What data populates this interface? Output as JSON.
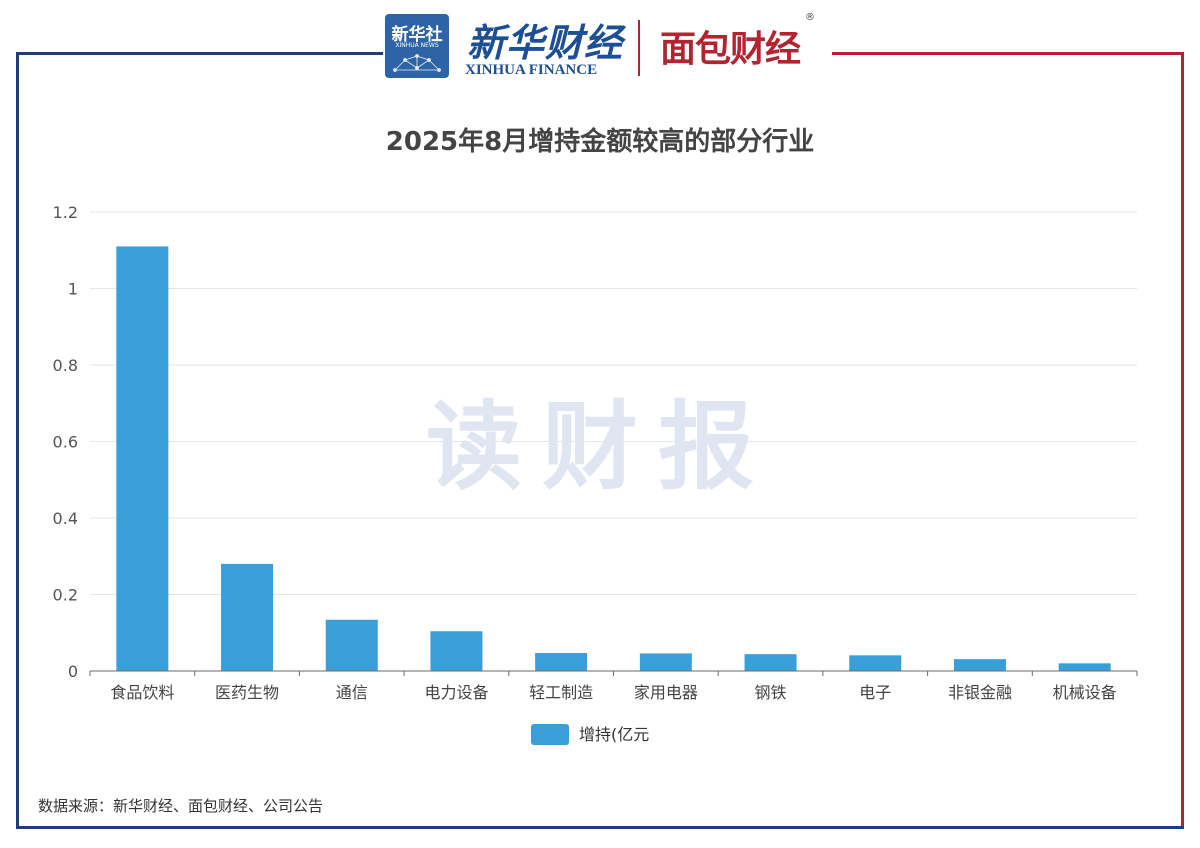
{
  "branding": {
    "xinhua_badge_cn": "新华社",
    "xinhua_badge_en": "XINHUA NEWS",
    "xinhua_finance_cn": "新华财经",
    "xinhua_finance_en": "XINHUA FINANCE",
    "mianbao_logo": "面包财经",
    "registered_mark": "®"
  },
  "watermark": "读财报",
  "source_note": "数据来源：新华财经、面包财经、公司公告",
  "colors": {
    "bar": "#3a9fd9",
    "frame_left": "#1f3d7a",
    "frame_right": "#b4232f",
    "grid": "#e3e6ef",
    "title": "#444444"
  },
  "chart_data": {
    "type": "bar",
    "title": "2025年8月增持金额较高的部分行业",
    "categories": [
      "食品饮料",
      "医药生物",
      "通信",
      "电力设备",
      "轻工制造",
      "家用电器",
      "钢铁",
      "电子",
      "非银金融",
      "机械设备"
    ],
    "series": [
      {
        "name": "增持(亿元",
        "values": [
          1.11,
          0.28,
          0.134,
          0.104,
          0.047,
          0.046,
          0.044,
          0.041,
          0.031,
          0.02
        ]
      }
    ],
    "yticks": [
      "0",
      "0.2",
      "0.4",
      "0.6",
      "0.8",
      "1",
      "1.2"
    ],
    "ylim": [
      0,
      1.2
    ],
    "grid": true,
    "legend_position": "bottom-center"
  }
}
